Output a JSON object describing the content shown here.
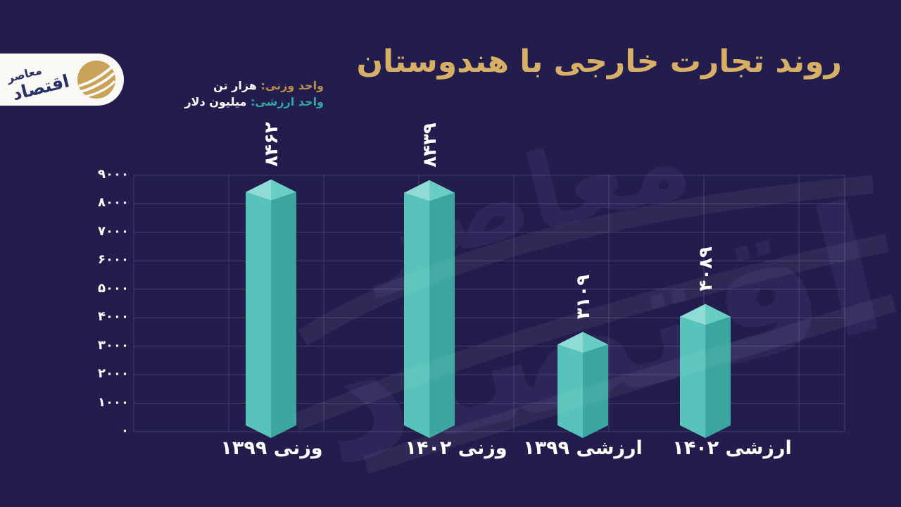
{
  "page": {
    "background": "#221d4c"
  },
  "header": {
    "title": "روند تجارت خارجی با هندوستان",
    "title_color": "#d7b066"
  },
  "logo": {
    "brand_name": "اقتصاد معاصر",
    "word_top": "معاصر",
    "word_bottom": "اقتصاد",
    "circle_color": "#c9a158",
    "text_color": "#2a3068",
    "pill_color": "#faf9f5"
  },
  "legend": {
    "weight_label": "واحد وزنی:",
    "weight_value": "هزار تن",
    "weight_label_color": "#b98e4f",
    "value_label": "واحد ارزشی:",
    "value_value": "میلیون دلار",
    "value_label_color": "#2fa9a3"
  },
  "watermark": {
    "text": "اقتصاد معاصر"
  },
  "chart_data": {
    "type": "bar",
    "title": "روند تجارت خارجی با هندوستان",
    "categories": [
      "وزنی ۱۳۹۹",
      "وزنی ۱۴۰۲",
      "ارزشی ۱۳۹۹",
      "ارزشی ۱۴۰۲"
    ],
    "values": [
      8462,
      8439,
      3109,
      4089
    ],
    "value_labels": [
      "۸۴۶۲",
      "۸۴۳۹",
      "۳۱۰۹",
      "۴۰۸۹"
    ],
    "y_ticks": [
      {
        "value": 9000,
        "label": "۹۰۰۰"
      },
      {
        "value": 8000,
        "label": "۸۰۰۰"
      },
      {
        "value": 7000,
        "label": "۷۰۰۰"
      },
      {
        "value": 6000,
        "label": "۶۰۰۰"
      },
      {
        "value": 5000,
        "label": "۵۰۰۰"
      },
      {
        "value": 4000,
        "label": "۴۰۰۰"
      },
      {
        "value": 3000,
        "label": "۳۰۰۰"
      },
      {
        "value": 2000,
        "label": "۲۰۰۰"
      },
      {
        "value": 1000,
        "label": "۱۰۰۰"
      },
      {
        "value": 0,
        "label": "۰"
      }
    ],
    "ylim": [
      0,
      9000
    ],
    "grid": true,
    "legend_position": "top-left",
    "units": {
      "weight": "هزار تن",
      "value": "میلیون دلار"
    },
    "colors": {
      "bar_left_face": "#58c3ba",
      "bar_right_face": "#3ba69f",
      "bar_top_left": "#8edcd3",
      "bar_top_right": "#68cec4",
      "value_label": "#ffffff",
      "gridline": "rgba(198,196,238,0.20)"
    }
  }
}
